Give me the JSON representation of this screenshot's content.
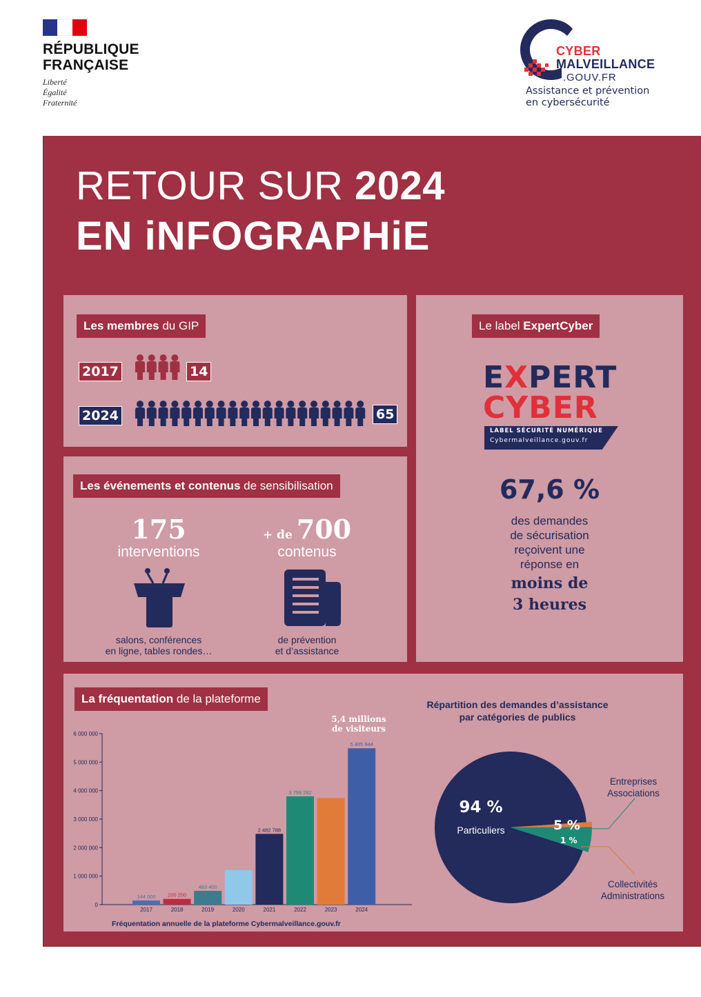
{
  "header": {
    "rf_title_line1": "RÉPUBLIQUE",
    "rf_title_line2": "FRANÇAISE",
    "rf_motto": [
      "Liberté",
      "Égalité",
      "Fraternité"
    ],
    "logo_line1": "CYBER",
    "logo_line2": "MALVEILLANCE",
    "logo_line3": ".GOUV.FR",
    "tagline_line1": "Assistance et prévention",
    "tagline_line2": "en cybersécurité",
    "colors": {
      "navy": "#232a5c",
      "red": "#e0313a",
      "crimson": "#a03043",
      "pink": "#cf9ba4"
    }
  },
  "title": {
    "line1_light": "RETOUR SUR ",
    "line1_bold": "2024",
    "line2": "EN iNFOGRAPHiE"
  },
  "members": {
    "tag_bold": "Les membres",
    "tag_rest": " du GIP",
    "rows": [
      {
        "year": "2017",
        "count": "14",
        "icons": 4
      },
      {
        "year": "2024",
        "count": "65",
        "icons": 20
      }
    ]
  },
  "label": {
    "tag_rest": "Le label ",
    "tag_bold": "ExpertCyber",
    "logo_line1_a": "E",
    "logo_line1_x": "X",
    "logo_line1_b": "PERT",
    "logo_line2": "CYBER",
    "logo_band1": "LABEL SÉCURITÉ NUMÉRIQUE",
    "logo_band2": "Cybermalveillance.gouv.fr",
    "percent": "67,6 %",
    "desc": [
      "des demandes",
      "de sécurisation",
      "reçoivent une",
      "réponse en"
    ],
    "strong": [
      "moins de",
      "3 heures"
    ]
  },
  "events": {
    "tag_bold": "Les événements et contenus",
    "tag_rest": " de sensibilisation",
    "left_num": "175",
    "left_word": "interventions",
    "left_desc": [
      "salons, conférences",
      "en ligne, tables rondes…"
    ],
    "right_prefix": "+ de",
    "right_num": "700",
    "right_word": "contenus",
    "right_desc": [
      "de prévention",
      "et d’assistance"
    ]
  },
  "traffic": {
    "tag_bold": "La fréquentation",
    "tag_rest": " de la plateforme",
    "note": [
      "5,4 millions",
      "de visiteurs"
    ],
    "caption": "Fréquentation annuelle de la plateforme Cybermalveillance.gouv.fr"
  },
  "pie": {
    "title": [
      "Répartition des demandes d’assistance",
      "par catégories de publics"
    ],
    "big_pct": "94 %",
    "big_label": "Particuliers",
    "mid_pct": "5 %",
    "small_pct": "1 %",
    "label_top": [
      "Entreprises",
      "Associations"
    ],
    "label_bottom": [
      "Collectivités",
      "Administrations"
    ]
  },
  "chart_data": [
    {
      "type": "bar",
      "title": "",
      "caption": "Fréquentation annuelle de la plateforme Cybermalveillance.gouv.fr",
      "categories": [
        "2017",
        "2018",
        "2019",
        "2020",
        "2021",
        "2022",
        "2023",
        "2024"
      ],
      "values": [
        144000,
        200200,
        483400,
        1210000,
        2482788,
        3799282,
        3740000,
        5485944
      ],
      "value_labels": [
        "144 000",
        "200 200",
        "483 400",
        "",
        "2 482 788",
        "3 799 282",
        "",
        "5 485 944"
      ],
      "colors": [
        "#4a6fb0",
        "#b82e3e",
        "#3b7d8c",
        "#8fc8e8",
        "#232a5c",
        "#1e8a76",
        "#e07b3a",
        "#3f5ea8"
      ],
      "yticks": [
        "0",
        "1 000 000",
        "2 000 000",
        "3 000 000",
        "4 000 000",
        "5 000 000",
        "6 000 000"
      ],
      "ylim": [
        0,
        6000000
      ],
      "grid": false
    },
    {
      "type": "pie",
      "title": "Répartition des demandes d’assistance par catégories de publics",
      "labels": [
        "Particuliers",
        "Entreprises Associations",
        "Collectivités Administrations"
      ],
      "values": [
        94,
        5,
        1
      ],
      "colors": [
        "#232a5c",
        "#1e8a76",
        "#e07b3a"
      ]
    }
  ]
}
